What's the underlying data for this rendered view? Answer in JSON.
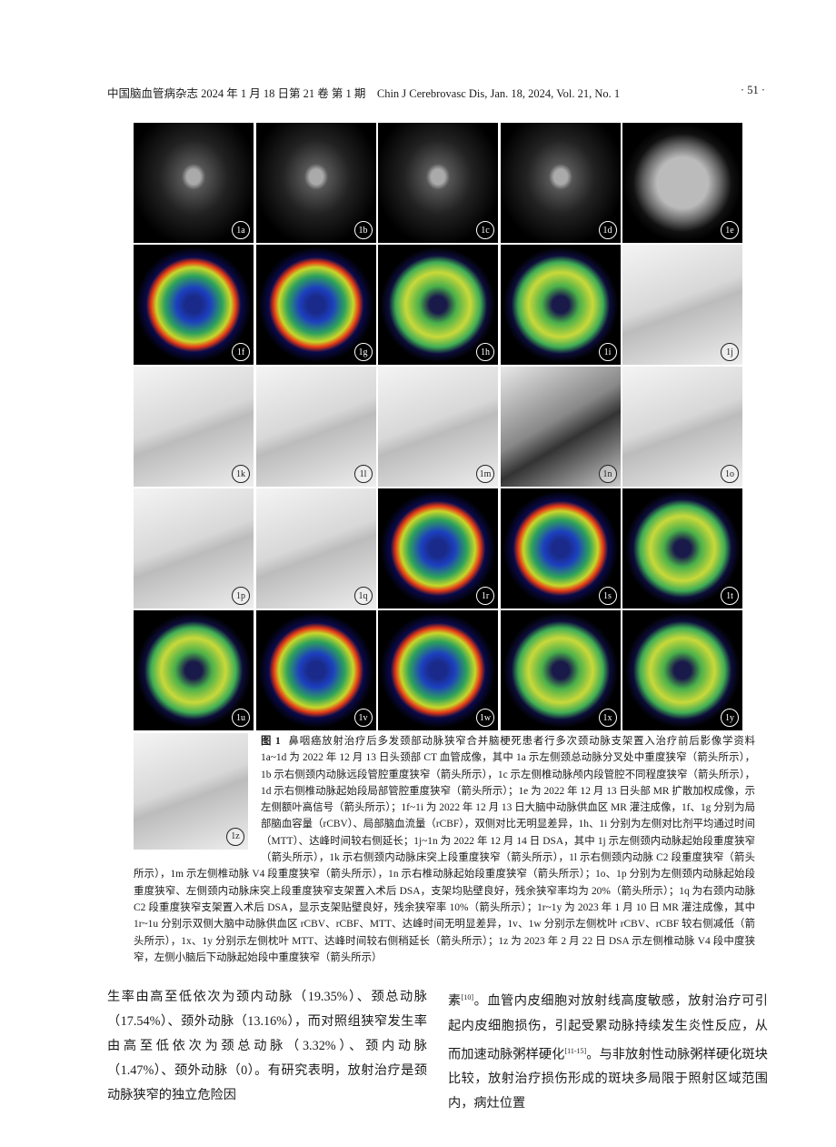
{
  "header": {
    "journal": "中国脑血管病杂志 2024 年 1 月 18 日第 21 卷 第 1 期　Chin J Cerebrovasc Dis, Jan. 18, 2024, Vol. 21, No. 1",
    "page": "· 51 ·"
  },
  "figure": {
    "panels": [
      "1a",
      "1b",
      "1c",
      "1d",
      "1e",
      "1f",
      "1g",
      "1h",
      "1i",
      "1j",
      "1k",
      "1l",
      "1m",
      "1n",
      "1o",
      "1p",
      "1q",
      "1r",
      "1s",
      "1t",
      "1u",
      "1v",
      "1w",
      "1x",
      "1y"
    ],
    "last_panel": "1z",
    "caption_title": "图 1",
    "caption": "鼻咽癌放射治疗后多发颈部动脉狭窄合并脑梗死患者行多次颈动脉支架置入治疗前后影像学资料　1a~1d 为 2022 年 12 月 13 日头颈部 CT 血管成像，其中 1a 示左侧颈总动脉分叉处中重度狭窄（箭头所示），1b 示右侧颈内动脉远段管腔重度狭窄（箭头所示），1c 示左侧椎动脉颅内段管腔不同程度狭窄（箭头所示），1d 示右侧椎动脉起始段局部管腔重度狭窄（箭头所示）；1e 为 2022 年 12 月 13 日头部 MR 扩散加权成像，示左侧额叶高信号（箭头所示）；1f~1i 为 2022 年 12 月 13 日大脑中动脉供血区 MR 灌注成像，1f、1g 分别为局部脑血容量（rCBV）、局部脑血流量（rCBF），双侧对比无明显差异，1h、1i 分别为左侧对比剂平均通过时间（MTT）、达峰时间较右侧延长；1j~1n 为 2022 年 12 月 14 日 DSA，其中 1j 示左侧颈内动脉起始段重度狭窄（箭头所示），1k 示右侧颈内动脉床突上段重度狭窄（箭头所示），1l 示右侧颈内动脉 C2 段重度狭窄（箭头所示），1m 示左侧椎动脉 V4 段重度狭窄（箭头所示），1n 示右椎动脉起始段重度狭窄（箭头所示）；1o、1p 分别为左侧颈内动脉起始段重度狭窄、左侧颈内动脉床突上段重度狭窄支架置入术后 DSA，支架均贴壁良好，残余狭窄率均为 20%（箭头所示）；1q 为右颈内动脉 C2 段重度狭窄支架置入术后 DSA，显示支架贴壁良好，残余狭窄率 10%（箭头所示）；1r~1y 为 2023 年 1 月 10 日 MR 灌注成像，其中 1r~1u 分别示双侧大脑中动脉供血区 rCBV、rCBF、MTT、达峰时间无明显差异，1v、1w 分别示左侧枕叶 rCBV、rCBF 较右侧减低（箭头所示），1x、1y 分别示左侧枕叶 MTT、达峰时间较右侧稍延长（箭头所示）；1z 为 2023 年 2 月 22 日 DSA 示左侧椎动脉 V4 段中度狭窄，左侧小脑后下动脉起始段中重度狭窄（箭头所示）"
  },
  "body": {
    "left": "生率由高至低依次为颈内动脉（19.35%）、颈总动脉（17.54%）、颈外动脉（13.16%），而对照组狭窄发生率由高至低依次为颈总动脉（3.32%）、颈内动脉（1.47%）、颈外动脉（0）。有研究表明，放射治疗是颈动脉狭窄的独立危险因",
    "right": [
      "素",
      "[10]",
      "。血管内皮细胞对放射线高度敏感，放射治疗可引起内皮细胞损伤，引起受累动脉持续发生炎性反应，从而加速动脉粥样硬化",
      "[11-15]",
      "。与非放射性动脉粥样硬化斑块比较，放射治疗损伤形成的斑块多局限于照射区域范围内，病灶位置"
    ]
  }
}
